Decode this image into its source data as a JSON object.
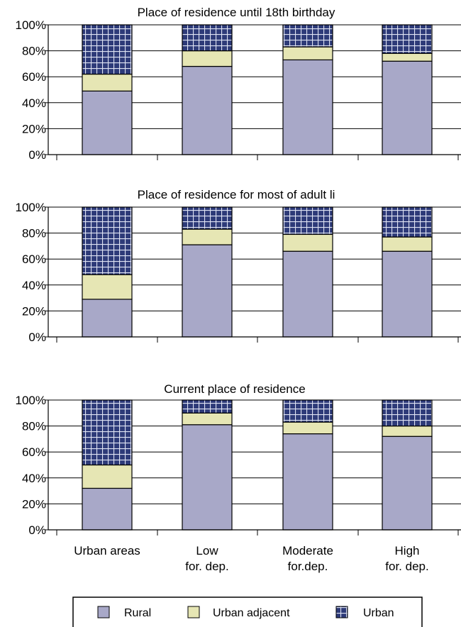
{
  "chart_data": [
    {
      "type": "bar",
      "stacked": true,
      "title": "Place of residence until 18th birthday",
      "categories": [
        "Urban areas",
        "Low for. dep.",
        "Moderate for.dep.",
        "High for. dep."
      ],
      "series": [
        {
          "name": "Rural",
          "values": [
            49,
            68,
            73,
            72
          ]
        },
        {
          "name": "Urban adjacent",
          "values": [
            13,
            12,
            10,
            6
          ]
        },
        {
          "name": "Urban",
          "values": [
            38,
            20,
            17,
            22
          ]
        }
      ],
      "ylim": [
        0,
        100
      ],
      "yticks": [
        "0%",
        "20%",
        "40%",
        "60%",
        "80%",
        "100%"
      ],
      "grid": true
    },
    {
      "type": "bar",
      "stacked": true,
      "title": "Place of residence for most of adult li",
      "categories": [
        "Urban areas",
        "Low for. dep.",
        "Moderate for.dep.",
        "High for. dep."
      ],
      "series": [
        {
          "name": "Rural",
          "values": [
            29,
            71,
            66,
            66
          ]
        },
        {
          "name": "Urban adjacent",
          "values": [
            19,
            12,
            13,
            11
          ]
        },
        {
          "name": "Urban",
          "values": [
            52,
            17,
            21,
            23
          ]
        }
      ],
      "ylim": [
        0,
        100
      ],
      "yticks": [
        "0%",
        "20%",
        "40%",
        "60%",
        "80%",
        "100%"
      ],
      "grid": true
    },
    {
      "type": "bar",
      "stacked": true,
      "title": "Current place of residence",
      "categories": [
        "Urban areas",
        "Low for. dep.",
        "Moderate for.dep.",
        "High for. dep."
      ],
      "category_labels": [
        [
          "Urban areas"
        ],
        [
          "Low",
          "for. dep."
        ],
        [
          "Moderate",
          "for.dep."
        ],
        [
          "High",
          "for. dep."
        ]
      ],
      "series": [
        {
          "name": "Rural",
          "values": [
            32,
            81,
            74,
            72
          ]
        },
        {
          "name": "Urban adjacent",
          "values": [
            18,
            9,
            9,
            8
          ]
        },
        {
          "name": "Urban",
          "values": [
            50,
            10,
            17,
            20
          ]
        }
      ],
      "ylim": [
        0,
        100
      ],
      "yticks": [
        "0%",
        "20%",
        "40%",
        "60%",
        "80%",
        "100%"
      ],
      "grid": true
    }
  ],
  "legend": {
    "placement": "bottom",
    "items": [
      {
        "label": "Rural",
        "color": "#a8a8c8",
        "pattern": "solid"
      },
      {
        "label": "Urban adjacent",
        "color": "#e6e6b4",
        "pattern": "solid"
      },
      {
        "label": "Urban",
        "color": "#2d3a78",
        "pattern": "grid"
      }
    ]
  },
  "colors": {
    "rural": "#a8a8c8",
    "urban_adjacent": "#e6e6b4",
    "urban": "#2d3a78"
  }
}
